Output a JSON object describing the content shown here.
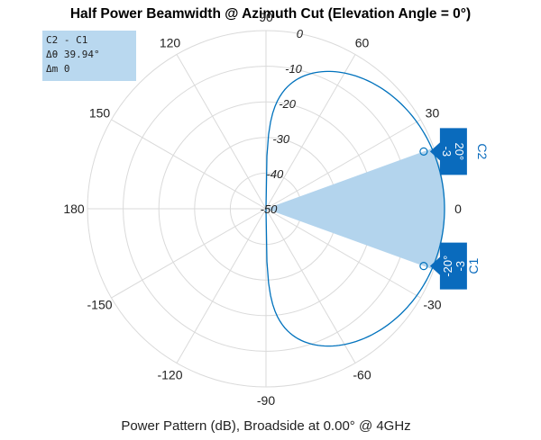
{
  "chart_data": {
    "type": "polar",
    "title": "Half Power Beamwidth @ Azimuth Cut (Elevation Angle = 0°)",
    "caption": "Power Pattern (dB), Broadside at 0.00° @ 4GHz",
    "angle_ticks": [
      {
        "angle": 0,
        "label": "0"
      },
      {
        "angle": 30,
        "label": "30"
      },
      {
        "angle": 60,
        "label": "60"
      },
      {
        "angle": 90,
        "label": "90"
      },
      {
        "angle": 120,
        "label": "120"
      },
      {
        "angle": 150,
        "label": "150"
      },
      {
        "angle": 180,
        "label": "180"
      },
      {
        "angle": -150,
        "label": "-150"
      },
      {
        "angle": -120,
        "label": "-120"
      },
      {
        "angle": -90,
        "label": "-90"
      },
      {
        "angle": -60,
        "label": "-60"
      },
      {
        "angle": -30,
        "label": "-30"
      }
    ],
    "r_ticks": [
      {
        "value": 0,
        "label": "0"
      },
      {
        "value": -10,
        "label": "-10"
      },
      {
        "value": -20,
        "label": "-20"
      },
      {
        "value": -30,
        "label": "-30"
      },
      {
        "value": -40,
        "label": "-40"
      },
      {
        "value": -50,
        "label": "-50"
      }
    ],
    "r_range": [
      -50,
      0
    ],
    "r_label_angle": 80,
    "series": [
      {
        "name": "Power Pattern (dB)",
        "color": "#0072bd",
        "model": "cos_linear",
        "peak_db": 0,
        "angle_range": [
          -90,
          90
        ],
        "step": 1
      }
    ],
    "span": {
      "from": -20,
      "to": 20,
      "color": "#b3d4ed"
    },
    "cursors": [
      {
        "name": "C1",
        "angle_label": "-20°",
        "value_label": "-3",
        "angle": -20,
        "value": -3
      },
      {
        "name": "C2",
        "angle_label": "20°",
        "value_label": "-3",
        "angle": 20,
        "value": -3
      }
    ],
    "readout": {
      "line1": "C2 - C1",
      "line2": "Δθ 39.94°",
      "line3": "Δm 0"
    },
    "colors": {
      "grid": "#dadada",
      "pattern": "#0072bd",
      "cursor_box": "#0a6bbd",
      "readout_bg": "#b9d8ef"
    }
  }
}
